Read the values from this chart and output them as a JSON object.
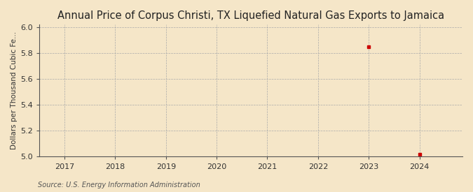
{
  "title": "Annual Price of Corpus Christi, TX Liquefied Natural Gas Exports to Jamaica",
  "ylabel": "Dollars per Thousand Cubic Fe...",
  "source": "Source: U.S. Energy Information Administration",
  "background_color": "#f5e6c8",
  "plot_bg_color": "#f5e6c8",
  "x_data": [
    2023,
    2024
  ],
  "y_data": [
    5.85,
    5.02
  ],
  "marker_color": "#cc0000",
  "xlim_left": 2016.5,
  "xlim_right": 2024.85,
  "ylim_bottom": 5.0,
  "ylim_top": 6.02,
  "xticks": [
    2017,
    2018,
    2019,
    2020,
    2021,
    2022,
    2023,
    2024
  ],
  "yticks": [
    5.0,
    5.2,
    5.4,
    5.6,
    5.8,
    6.0
  ],
  "title_fontsize": 10.5,
  "label_fontsize": 7.5,
  "tick_fontsize": 8,
  "source_fontsize": 7
}
